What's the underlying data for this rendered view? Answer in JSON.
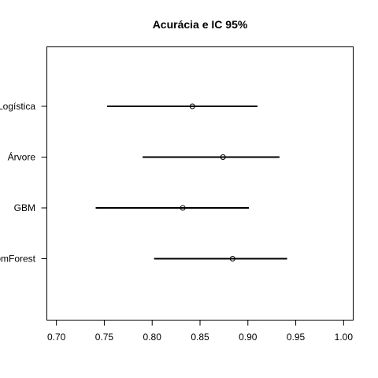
{
  "chart_data": {
    "type": "scatter",
    "title": "Acurácia e IC 95%",
    "xlabel": "",
    "ylabel": "",
    "xlim": [
      0.69,
      1.01
    ],
    "x_ticks": [
      0.7,
      0.75,
      0.8,
      0.85,
      0.9,
      0.95,
      1.0
    ],
    "x_tick_labels": [
      "0.70",
      "0.75",
      "0.80",
      "0.85",
      "0.90",
      "0.95",
      "1.00"
    ],
    "categories": [
      "Logística",
      "Árvore",
      "GBM",
      "RandomForest"
    ],
    "series": [
      {
        "values": [
          0.842,
          0.874,
          0.832,
          0.884
        ],
        "lower": [
          0.753,
          0.79,
          0.741,
          0.802
        ],
        "upper": [
          0.91,
          0.933,
          0.901,
          0.941
        ]
      }
    ],
    "grid": false,
    "legend": "none"
  }
}
